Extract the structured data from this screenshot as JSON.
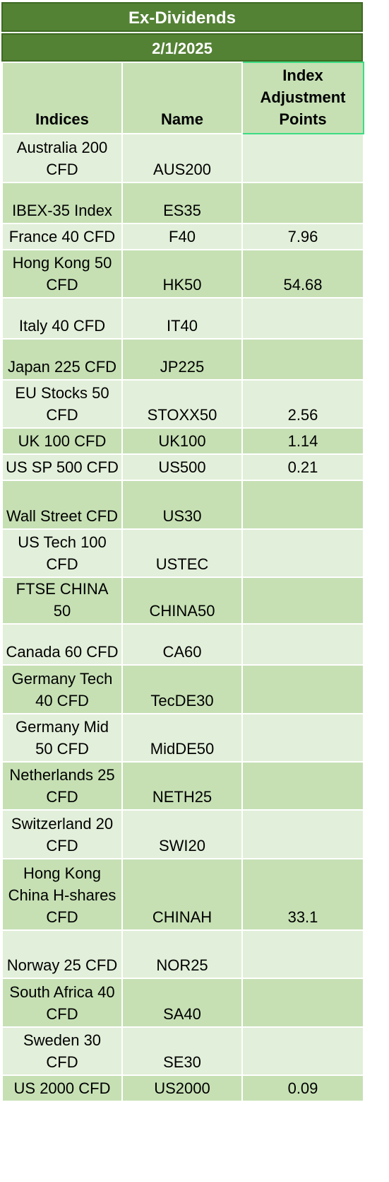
{
  "title": "Ex-Dividends",
  "date": "2/1/2025",
  "headers": {
    "indices": "Indices",
    "name": "Name",
    "points": "Index Adjustment Points"
  },
  "rows": [
    {
      "index": "Australia 200 CFD",
      "name": "AUS200",
      "points": ""
    },
    {
      "index": "IBEX-35 Index",
      "name": "ES35",
      "points": ""
    },
    {
      "index": "France 40 CFD",
      "name": "F40",
      "points": "7.96"
    },
    {
      "index": "Hong Kong 50 CFD",
      "name": "HK50",
      "points": "54.68"
    },
    {
      "index": "Italy 40 CFD",
      "name": "IT40",
      "points": ""
    },
    {
      "index": "Japan 225 CFD",
      "name": "JP225",
      "points": ""
    },
    {
      "index": "EU Stocks 50 CFD",
      "name": "STOXX50",
      "points": "2.56"
    },
    {
      "index": "UK 100 CFD",
      "name": "UK100",
      "points": "1.14"
    },
    {
      "index": "US SP 500 CFD",
      "name": "US500",
      "points": "0.21"
    },
    {
      "index": "Wall Street CFD",
      "name": "US30",
      "points": ""
    },
    {
      "index": "US Tech 100 CFD",
      "name": "USTEC",
      "points": ""
    },
    {
      "index": "FTSE CHINA 50",
      "name": "CHINA50",
      "points": ""
    },
    {
      "index": "Canada 60 CFD",
      "name": "CA60",
      "points": ""
    },
    {
      "index": "Germany Tech 40 CFD",
      "name": "TecDE30",
      "points": ""
    },
    {
      "index": "Germany Mid 50 CFD",
      "name": "MidDE50",
      "points": ""
    },
    {
      "index": "Netherlands 25 CFD",
      "name": "NETH25",
      "points": ""
    },
    {
      "index": "Switzerland 20 CFD",
      "name": "SWI20",
      "points": ""
    },
    {
      "index": "Hong Kong China H-shares CFD",
      "name": "CHINAH",
      "points": "33.1"
    },
    {
      "index": "Norway 25 CFD",
      "name": "NOR25",
      "points": ""
    },
    {
      "index": "South Africa 40 CFD",
      "name": "SA40",
      "points": ""
    },
    {
      "index": "Sweden 30 CFD",
      "name": "SE30",
      "points": ""
    },
    {
      "index": "US 2000 CFD",
      "name": "US2000",
      "points": "0.09"
    }
  ]
}
